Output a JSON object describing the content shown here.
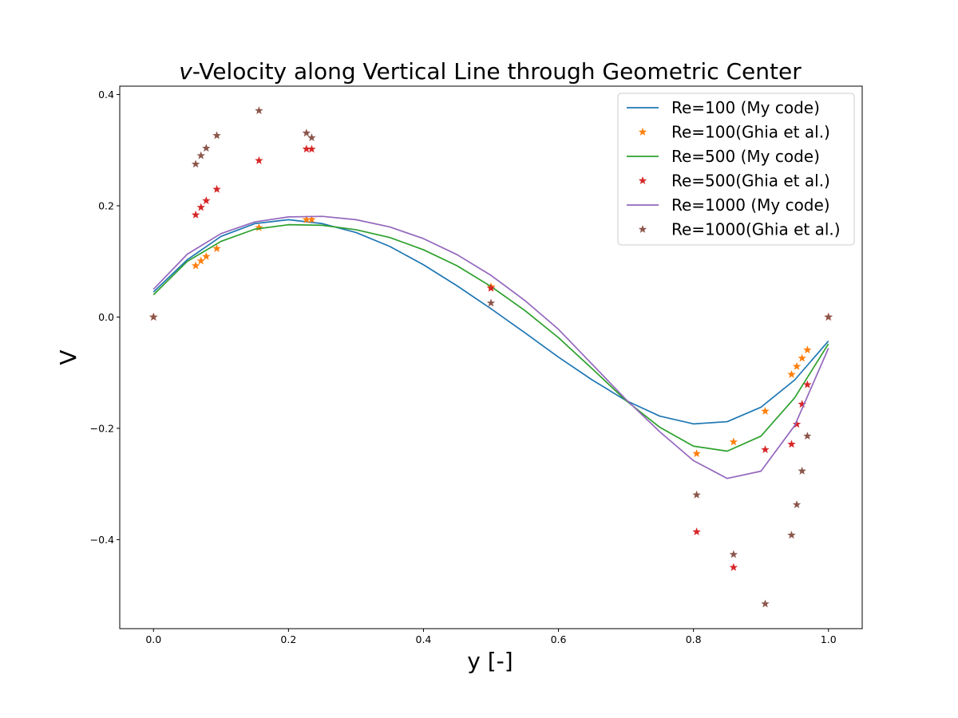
{
  "chart_data": {
    "type": "line",
    "title_italic": "v",
    "title_rest": "-Velocity along Vertical Line through Geometric Center",
    "xlabel": "y [-]",
    "ylabel": "V",
    "xlim": [
      -0.05,
      1.05
    ],
    "ylim": [
      -0.56,
      0.415
    ],
    "xticks": [
      0.0,
      0.2,
      0.4,
      0.6,
      0.8,
      1.0
    ],
    "yticks": [
      -0.4,
      -0.2,
      0.0,
      0.2,
      0.4
    ],
    "xtick_labels": [
      "0.0",
      "0.2",
      "0.4",
      "0.6",
      "0.8",
      "1.0"
    ],
    "ytick_labels": [
      "−0.4",
      "−0.2",
      "0.0",
      "0.2",
      "0.4"
    ],
    "grid": false,
    "legend_position": "top-right",
    "series": [
      {
        "name": "Re=100 (My code)",
        "kind": "line",
        "color": "#1f77b4",
        "x": [
          0.0,
          0.05,
          0.1,
          0.15,
          0.2,
          0.25,
          0.3,
          0.35,
          0.4,
          0.45,
          0.5,
          0.55,
          0.6,
          0.65,
          0.7,
          0.75,
          0.8,
          0.85,
          0.9,
          0.95,
          1.0
        ],
        "y": [
          0.045,
          0.103,
          0.145,
          0.168,
          0.175,
          0.168,
          0.152,
          0.127,
          0.094,
          0.056,
          0.015,
          -0.028,
          -0.072,
          -0.113,
          -0.15,
          -0.178,
          -0.192,
          -0.188,
          -0.162,
          -0.113,
          -0.043
        ]
      },
      {
        "name": "Re=100(Ghia et al.)",
        "kind": "marker",
        "color": "#ff7f0e",
        "x": [
          0.0,
          0.0625,
          0.0703,
          0.0781,
          0.0938,
          0.1563,
          0.2266,
          0.2344,
          0.5,
          0.8047,
          0.8594,
          0.9063,
          0.9453,
          0.9531,
          0.9609,
          0.9688,
          1.0
        ],
        "y": [
          0.0,
          0.09233,
          0.10091,
          0.1089,
          0.12317,
          0.16077,
          0.17507,
          0.17527,
          0.05454,
          -0.24533,
          -0.22445,
          -0.16914,
          -0.10313,
          -0.08864,
          -0.07391,
          -0.05906,
          0.0
        ]
      },
      {
        "name": "Re=500 (My code)",
        "kind": "line",
        "color": "#2ca02c",
        "x": [
          0.0,
          0.05,
          0.1,
          0.15,
          0.2,
          0.25,
          0.3,
          0.35,
          0.4,
          0.45,
          0.5,
          0.55,
          0.6,
          0.65,
          0.7,
          0.75,
          0.8,
          0.85,
          0.9,
          0.95,
          1.0
        ],
        "y": [
          0.04,
          0.1,
          0.136,
          0.158,
          0.166,
          0.165,
          0.157,
          0.143,
          0.121,
          0.092,
          0.055,
          0.012,
          -0.037,
          -0.093,
          -0.15,
          -0.198,
          -0.232,
          -0.241,
          -0.214,
          -0.145,
          -0.048
        ]
      },
      {
        "name": "Re=500(Ghia et al.)",
        "kind": "marker",
        "color": "#d62728",
        "x": [
          0.0,
          0.0625,
          0.0703,
          0.0781,
          0.0938,
          0.1563,
          0.2266,
          0.2344,
          0.5,
          0.8047,
          0.8594,
          0.9063,
          0.9453,
          0.9531,
          0.9609,
          0.9688,
          1.0
        ],
        "y": [
          0.0,
          0.1836,
          0.19713,
          0.2092,
          0.22965,
          0.28124,
          0.30203,
          0.30174,
          0.05186,
          -0.38598,
          -0.44993,
          -0.23827,
          -0.22847,
          -0.19254,
          -0.15663,
          -0.12146,
          0.0
        ]
      },
      {
        "name": "Re=1000 (My code)",
        "kind": "line",
        "color": "#9467bd",
        "x": [
          0.0,
          0.05,
          0.1,
          0.15,
          0.2,
          0.25,
          0.3,
          0.35,
          0.4,
          0.45,
          0.5,
          0.55,
          0.6,
          0.65,
          0.7,
          0.75,
          0.8,
          0.85,
          0.9,
          0.95,
          1.0
        ],
        "y": [
          0.05,
          0.113,
          0.15,
          0.171,
          0.18,
          0.181,
          0.175,
          0.162,
          0.141,
          0.112,
          0.075,
          0.03,
          -0.022,
          -0.085,
          -0.148,
          -0.206,
          -0.258,
          -0.29,
          -0.277,
          -0.195,
          -0.056
        ]
      },
      {
        "name": "Re=1000(Ghia et al.)",
        "kind": "marker",
        "color": "#8c564b",
        "x": [
          0.0,
          0.0625,
          0.0703,
          0.0781,
          0.0938,
          0.1563,
          0.2266,
          0.2344,
          0.5,
          0.8047,
          0.8594,
          0.9063,
          0.9453,
          0.9531,
          0.9609,
          0.9688,
          1.0
        ],
        "y": [
          0.0,
          0.27485,
          0.29012,
          0.30353,
          0.32627,
          0.37095,
          0.33075,
          0.32235,
          0.02526,
          -0.31966,
          -0.42665,
          -0.5155,
          -0.39188,
          -0.33714,
          -0.27669,
          -0.21388,
          0.0
        ]
      }
    ]
  }
}
